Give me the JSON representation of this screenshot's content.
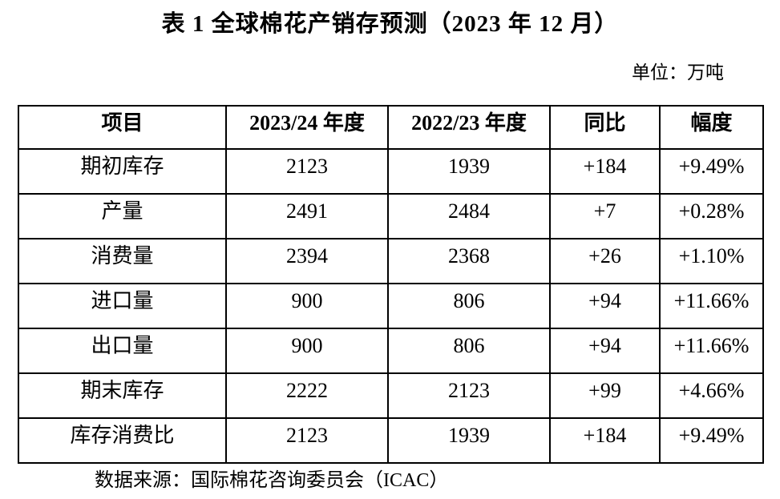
{
  "title": "表 1  全球棉花产销存预测（2023 年 12 月）",
  "unit_label": "单位：万吨",
  "source": "数据来源：国际棉花咨询委员会（ICAC）",
  "table": {
    "headers": [
      "项目",
      "2023/24 年度",
      "2022/23 年度",
      "同比",
      "幅度"
    ],
    "rows": [
      [
        "期初库存",
        "2123",
        "1939",
        "+184",
        "+9.49%"
      ],
      [
        "产量",
        "2491",
        "2484",
        "+7",
        "+0.28%"
      ],
      [
        "消费量",
        "2394",
        "2368",
        "+26",
        "+1.10%"
      ],
      [
        "进口量",
        "900",
        "806",
        "+94",
        "+11.66%"
      ],
      [
        "出口量",
        "900",
        "806",
        "+94",
        "+11.66%"
      ],
      [
        "期末库存",
        "2222",
        "2123",
        "+99",
        "+4.66%"
      ],
      [
        "库存消费比",
        "2123",
        "1939",
        "+184",
        "+9.49%"
      ]
    ]
  },
  "chart_data": {
    "type": "table",
    "title": "表 1  全球棉花产销存预测（2023 年 12 月）",
    "unit": "万吨",
    "columns": [
      "项目",
      "2023/24 年度",
      "2022/23 年度",
      "同比",
      "幅度"
    ],
    "rows": [
      {
        "item": "期初库存",
        "y2023_24": 2123,
        "y2022_23": 1939,
        "change": "+184",
        "pct": "+9.49%"
      },
      {
        "item": "产量",
        "y2023_24": 2491,
        "y2022_23": 2484,
        "change": "+7",
        "pct": "+0.28%"
      },
      {
        "item": "消费量",
        "y2023_24": 2394,
        "y2022_23": 2368,
        "change": "+26",
        "pct": "+1.10%"
      },
      {
        "item": "进口量",
        "y2023_24": 900,
        "y2022_23": 806,
        "change": "+94",
        "pct": "+11.66%"
      },
      {
        "item": "出口量",
        "y2023_24": 900,
        "y2022_23": 806,
        "change": "+94",
        "pct": "+11.66%"
      },
      {
        "item": "期末库存",
        "y2023_24": 2222,
        "y2022_23": 2123,
        "change": "+99",
        "pct": "+4.66%"
      },
      {
        "item": "库存消费比",
        "y2023_24": 2123,
        "y2022_23": 1939,
        "change": "+184",
        "pct": "+9.49%"
      }
    ],
    "source": "数据来源：国际棉花咨询委员会（ICAC）"
  }
}
